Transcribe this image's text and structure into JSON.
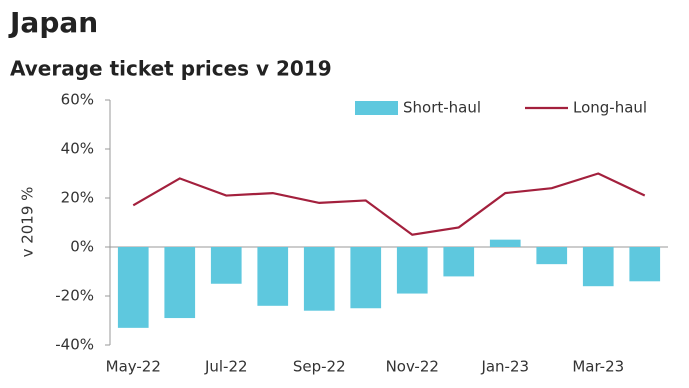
{
  "chart_data": {
    "type": "bar",
    "title": "Japan",
    "subtitle": "Average ticket prices v 2019",
    "y_label": "v 2019 %",
    "categories": [
      "May-22",
      null,
      "Jul-22",
      null,
      "Sep-22",
      null,
      "Nov-22",
      null,
      "Jan-23",
      null,
      "Mar-23",
      null
    ],
    "series": [
      {
        "name": "Short-haul",
        "type": "bar",
        "color": "#5ec8de",
        "values": [
          -33,
          -29,
          -15,
          -24,
          -26,
          -25,
          -19,
          -12,
          3,
          -7,
          -16,
          -14
        ]
      },
      {
        "name": "Long-haul",
        "type": "line",
        "color": "#a3203d",
        "values": [
          17,
          28,
          21,
          22,
          18,
          19,
          5,
          8,
          22,
          24,
          30,
          21
        ]
      }
    ],
    "ylim": [
      -40,
      60
    ],
    "yticks": [
      {
        "value": -40,
        "label": "-40%"
      },
      {
        "value": -20,
        "label": "-20%"
      },
      {
        "value": 0,
        "label": "0%"
      },
      {
        "value": 20,
        "label": "20%"
      },
      {
        "value": 40,
        "label": "40%"
      },
      {
        "value": 60,
        "label": "60%"
      }
    ],
    "grid": false,
    "legend": "top-right"
  }
}
